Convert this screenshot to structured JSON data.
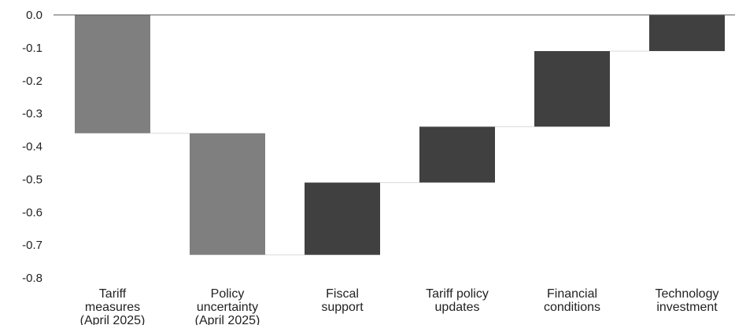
{
  "chart_data": {
    "type": "waterfall",
    "categories": [
      [
        "Tariff",
        "measures",
        "(April 2025)"
      ],
      [
        "Policy",
        "uncertainty",
        "(April 2025)"
      ],
      [
        "Fiscal",
        "support"
      ],
      [
        "Tariff policy",
        "updates"
      ],
      [
        "Financial",
        "conditions"
      ],
      [
        "Technology",
        "investment"
      ]
    ],
    "bars": [
      {
        "start": 0.0,
        "end": -0.36,
        "group": "April 2025"
      },
      {
        "start": -0.36,
        "end": -0.73,
        "group": "April 2025"
      },
      {
        "start": -0.73,
        "end": -0.51,
        "group": "update"
      },
      {
        "start": -0.51,
        "end": -0.34,
        "group": "update"
      },
      {
        "start": -0.34,
        "end": -0.11,
        "group": "update"
      },
      {
        "start": -0.11,
        "end": 0.0,
        "group": "update"
      }
    ],
    "yticks": [
      "0.0",
      "-0.1",
      "-0.2",
      "-0.3",
      "-0.4",
      "-0.5",
      "-0.6",
      "-0.7",
      "-0.8"
    ],
    "ylim": [
      -0.8,
      0.0
    ],
    "grid": false,
    "colors": {
      "April 2025": "#7f7f7f",
      "update": "#404040",
      "axis": "#555555",
      "connector": "#d9d9d9"
    }
  }
}
